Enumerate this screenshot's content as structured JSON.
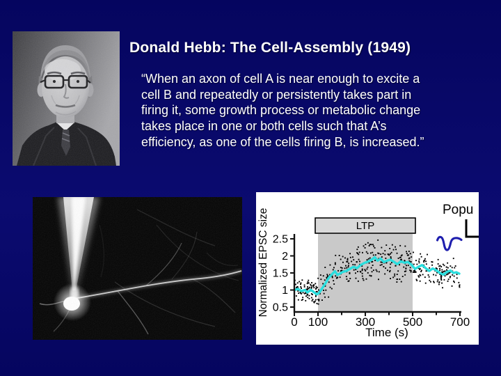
{
  "slide": {
    "background_color": "#060667",
    "text_color": "#ffffff",
    "title": "Donald Hebb: The Cell-Assembly (1949)",
    "quote_lines": [
      "“When an axon of cell A is near enough to excite a",
      "cell B and repeatedly or persistently takes part in",
      "firing it, some growth process or metabolic change",
      "takes place in one or both cells such that A’s",
      "efficiency, as one of the cells firing B, is increased.”"
    ]
  },
  "images": {
    "portrait_alt": "black-and-white portrait photograph of Donald Hebb",
    "neuron_alt": "fluorescence micrograph of a neuron contacted by a patch pipette"
  },
  "chart_data": {
    "type": "scatter",
    "xlabel": "Time (s)",
    "ylabel": "Normalized EPSC size",
    "xlim": [
      0,
      700
    ],
    "ylim": [
      0.35,
      2.6
    ],
    "x_major_ticks": [
      0,
      100,
      300,
      500,
      700
    ],
    "x_minor_ticks": [
      200,
      400,
      600
    ],
    "y_ticks": [
      0.5,
      1,
      1.5,
      2,
      2.5
    ],
    "grid": false,
    "background": "#ffffff",
    "axis_color": "#111111",
    "shaded_window": {
      "label": "LTP",
      "t_start": 100,
      "t_end": 500,
      "fill": "#c9c9c9",
      "label_box_fill": "#d9d9d9"
    },
    "annotation_top_right": {
      "text": "Popu"
    },
    "inset": {
      "trace_color": "#1f1fae",
      "scalebar_color": "#000000"
    },
    "series": [
      {
        "name": "single_epsc_measurements",
        "style": "scatter",
        "color": "#000000",
        "marker_size": 1.9,
        "bands": [
          {
            "t_range": [
              0,
              100
            ],
            "spread": 0.17,
            "count": 95
          },
          {
            "t_range": [
              100,
              500
            ],
            "spread": 0.3,
            "count": 275
          },
          {
            "t_range": [
              500,
              700
            ],
            "spread": 0.25,
            "count": 140
          }
        ]
      },
      {
        "name": "running_average",
        "style": "line",
        "color": "#2bdede",
        "width": 3.4,
        "points": [
          [
            0,
            1.0
          ],
          [
            15,
            1.03
          ],
          [
            30,
            0.97
          ],
          [
            45,
            1.0
          ],
          [
            55,
            0.93
          ],
          [
            70,
            1.0
          ],
          [
            80,
            0.95
          ],
          [
            95,
            0.87
          ],
          [
            105,
            0.92
          ],
          [
            115,
            1.02
          ],
          [
            130,
            1.18
          ],
          [
            145,
            1.35
          ],
          [
            160,
            1.47
          ],
          [
            172,
            1.55
          ],
          [
            182,
            1.44
          ],
          [
            192,
            1.48
          ],
          [
            205,
            1.53
          ],
          [
            220,
            1.56
          ],
          [
            235,
            1.62
          ],
          [
            250,
            1.68
          ],
          [
            265,
            1.64
          ],
          [
            280,
            1.73
          ],
          [
            295,
            1.79
          ],
          [
            310,
            1.83
          ],
          [
            325,
            1.88
          ],
          [
            340,
            1.96
          ],
          [
            352,
            1.86
          ],
          [
            365,
            1.92
          ],
          [
            378,
            1.82
          ],
          [
            392,
            1.86
          ],
          [
            405,
            1.89
          ],
          [
            420,
            1.83
          ],
          [
            435,
            1.76
          ],
          [
            450,
            1.84
          ],
          [
            465,
            1.8
          ],
          [
            480,
            1.82
          ],
          [
            495,
            1.74
          ],
          [
            510,
            1.62
          ],
          [
            525,
            1.68
          ],
          [
            540,
            1.73
          ],
          [
            555,
            1.64
          ],
          [
            570,
            1.56
          ],
          [
            585,
            1.63
          ],
          [
            600,
            1.58
          ],
          [
            615,
            1.5
          ],
          [
            630,
            1.45
          ],
          [
            645,
            1.53
          ],
          [
            660,
            1.57
          ],
          [
            672,
            1.5
          ],
          [
            685,
            1.52
          ],
          [
            697,
            1.48
          ]
        ]
      }
    ]
  }
}
